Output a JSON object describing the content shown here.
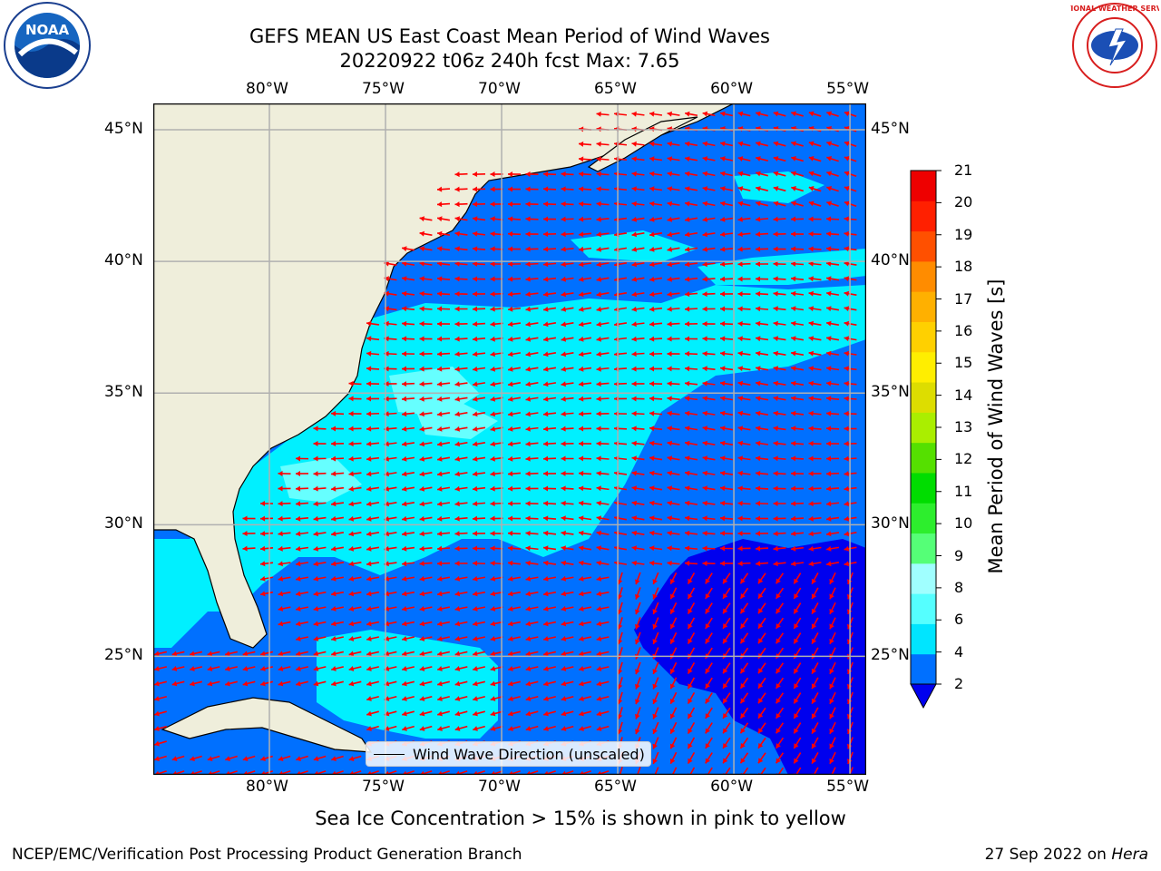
{
  "title": {
    "line1": "GEFS MEAN US East Coast Mean Period of Wind Waves",
    "line2": "20220922 t06z 240h fcst   Max: 7.65"
  },
  "map": {
    "lon_ticks": [
      "80°W",
      "75°W",
      "70°W",
      "65°W",
      "60°W",
      "55°W"
    ],
    "lat_ticks": [
      "45°N",
      "40°N",
      "35°N",
      "30°N",
      "25°N"
    ],
    "lon_range": [
      -85,
      -54.3
    ],
    "lat_range": [
      20.5,
      46
    ],
    "projection": "lat-lon (equidistant cylindrical)",
    "grid": true,
    "vectors": "red arrows showing wind wave direction, predominantly westward in mid-latitudes and southwestward in the southeast"
  },
  "legend": {
    "label": "Wind Wave Direction (unscaled)"
  },
  "colorbar": {
    "title": "Mean Period of Wind Waves [s]",
    "ticks": [
      "2",
      "4",
      "6",
      "8",
      "9",
      "10",
      "11",
      "12",
      "13",
      "14",
      "15",
      "16",
      "17",
      "18",
      "19",
      "20",
      "21"
    ],
    "colors": [
      "#0070ff",
      "#00e5ff",
      "#55ffff",
      "#a0ffff",
      "#55ff77",
      "#2dee2d",
      "#00dd00",
      "#55e000",
      "#aaee00",
      "#dddd00",
      "#ffee00",
      "#ffd000",
      "#ffb000",
      "#ff8c00",
      "#ff5000",
      "#ff2000",
      "#ee0000"
    ],
    "under_color": "#0000ee"
  },
  "caption": "Sea Ice Concentration > 15% is shown in pink to yellow",
  "footer": {
    "left": "NCEP/EMC/Verification Post Processing Product Generation Branch",
    "right_date": "27 Sep 2022 on ",
    "right_host": "Hera"
  },
  "logos": {
    "noaa": "NOAA",
    "nws": "NATIONAL WEATHER SERVICE"
  }
}
